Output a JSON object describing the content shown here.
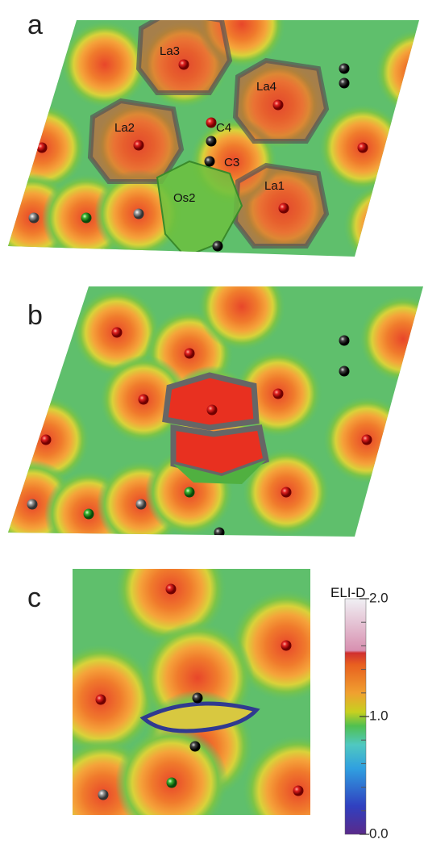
{
  "panels": [
    {
      "label": "a",
      "atom_labels": [
        "La3",
        "La4",
        "La2",
        "C4",
        "C3",
        "Os2",
        "La1"
      ]
    },
    {
      "label": "b"
    },
    {
      "label": "c"
    }
  ],
  "colorbar": {
    "title": "ELI-D",
    "lim": [
      0,
      2
    ],
    "ticks": [
      {
        "value": 0,
        "label": "0.0"
      },
      {
        "value": 1,
        "label": "1.0"
      },
      {
        "value": 2,
        "label": "2.0"
      }
    ]
  }
}
